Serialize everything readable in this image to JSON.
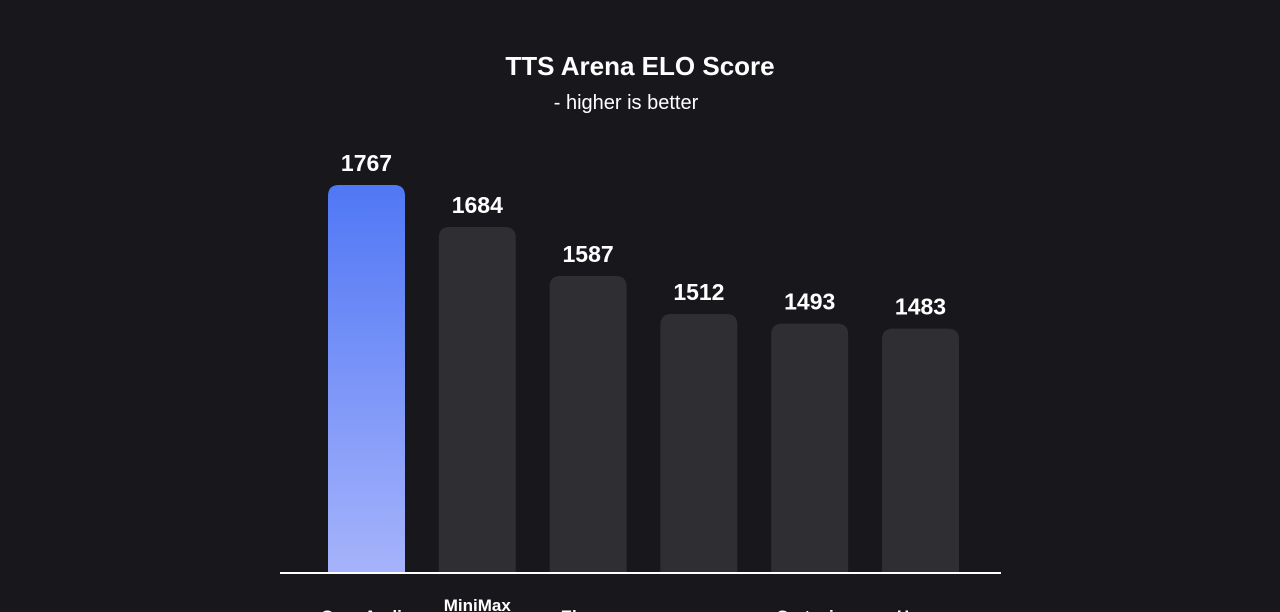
{
  "chart_data": {
    "type": "bar",
    "title": "TTS Arena ELO Score",
    "subtitle": "- higher is better",
    "categories": [
      "OpenAudio",
      "MiniMax",
      "Eleven",
      "",
      "Cartesia",
      "Hume"
    ],
    "values": [
      1767,
      1684,
      1587,
      1512,
      1493,
      1483
    ],
    "highlight_index": 0,
    "ylim": [
      1000,
      1767
    ],
    "grid": false,
    "legend": "none",
    "colors": {
      "background": "#18171c",
      "bar": "#2f2f33",
      "highlight_top": "#5077f5",
      "highlight_bottom": "#a6b3fb",
      "baseline": "#ffffff",
      "text": "#ffffff"
    }
  }
}
